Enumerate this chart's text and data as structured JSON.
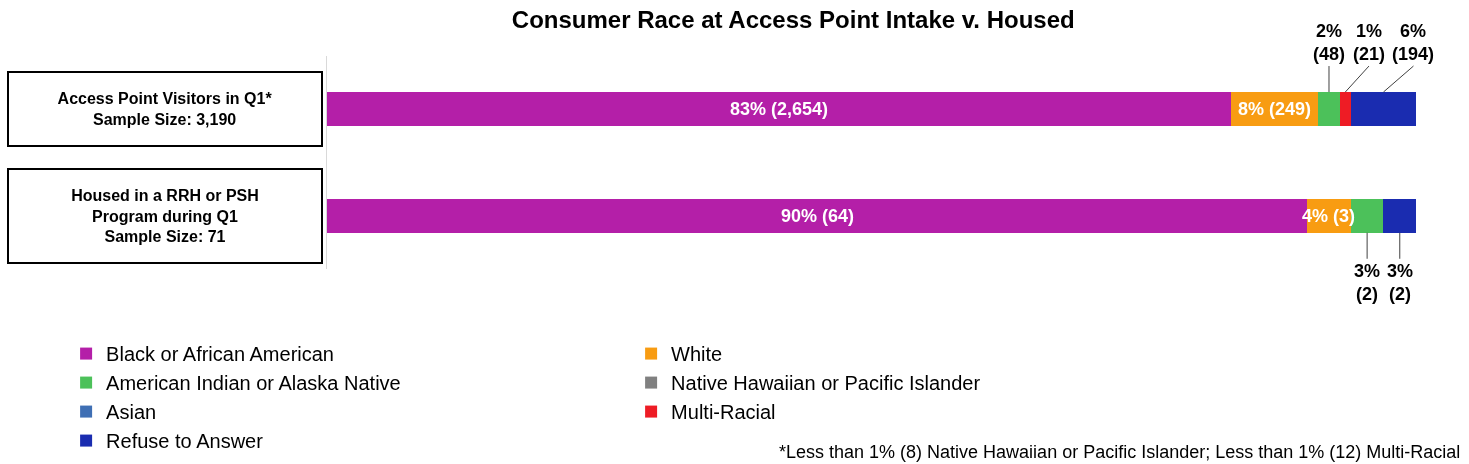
{
  "chart_data": {
    "type": "bar",
    "orientation": "horizontal",
    "stacked": true,
    "title": "Consumer Race at Access Point Intake v. Housed",
    "categories": [
      "Access Point Visitors in Q1*\nSample Size: 3,190",
      "Housed in a RRH or PSH\nProgram during Q1\nSample Size: 71"
    ],
    "series": [
      {
        "name": "Black or African American",
        "color": "#b41fa8",
        "values": [
          83,
          90
        ],
        "value_labels": [
          "83% (2,654)",
          "90% (64)"
        ]
      },
      {
        "name": "White",
        "color": "#f89c12",
        "values": [
          8,
          4
        ],
        "value_labels": [
          "8% (249)",
          "4% (3)"
        ]
      },
      {
        "name": "American Indian or Alaska Native",
        "color": "#4cc15a",
        "values": [
          2,
          3
        ],
        "value_labels": [
          "2% (48)",
          "3% (2)"
        ]
      },
      {
        "name": "Native Hawaiian or Pacific Islander",
        "color": "#808080",
        "values": [
          null,
          null
        ]
      },
      {
        "name": "Asian",
        "color": "#3f6fb4",
        "values": [
          null,
          null
        ]
      },
      {
        "name": "Multi-Racial",
        "color": "#ee1c25",
        "values": [
          1,
          null
        ],
        "value_labels": [
          "1% (21)",
          null
        ]
      },
      {
        "name": "Refuse to Answer",
        "color": "#1a2cb0",
        "values": [
          6,
          3
        ],
        "value_labels": [
          "6% (194)",
          "3% (2)"
        ]
      }
    ],
    "legend": "bottom",
    "annotations": [
      "*Less than 1% (8) Native Hawaiian or Pacific Islander; Less than 1% (12) Multi-Racial"
    ]
  }
}
